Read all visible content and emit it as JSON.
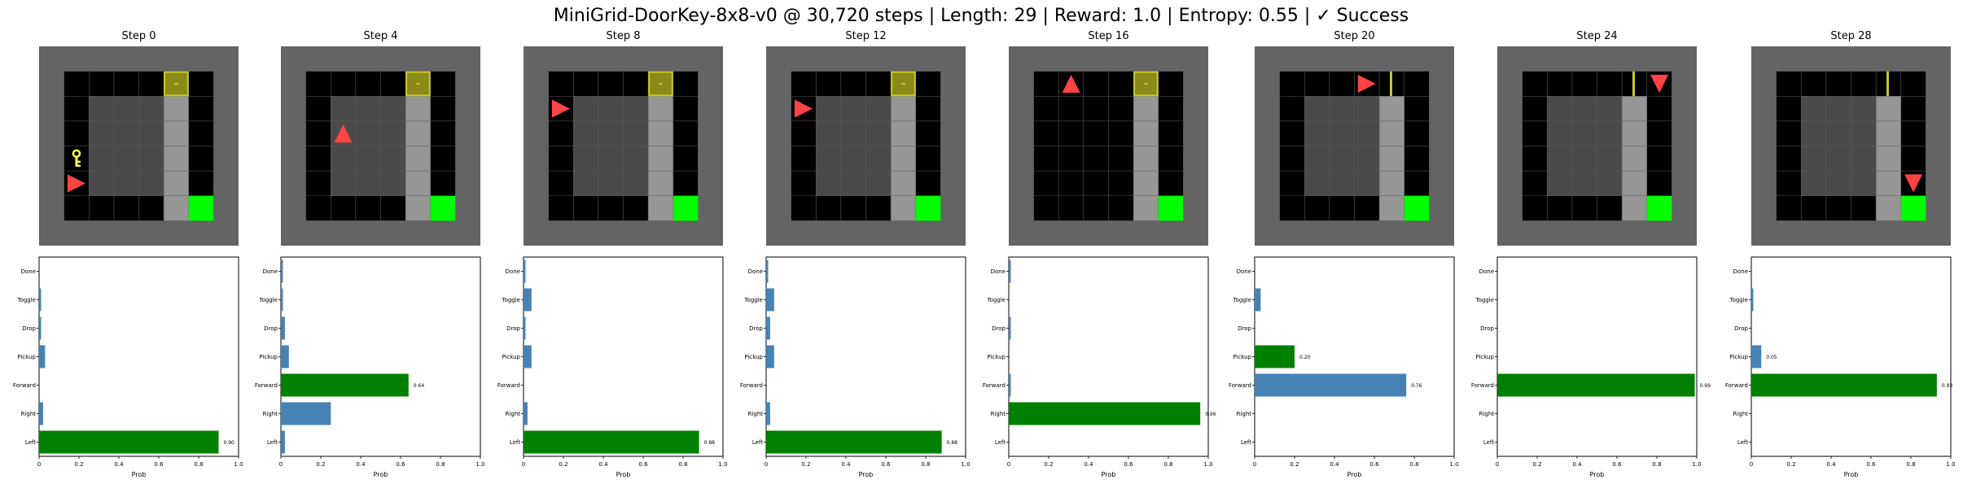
{
  "figure": {
    "title": "MiniGrid-DoorKey-8x8-v0 @ 30,720 steps | Length: 29 | Reward: 1.0 | Entropy: 0.55 | ✓ Success"
  },
  "colors": {
    "outer_wall": "#646464",
    "visible_wall": "#969696",
    "unseen_floor": "#000000",
    "seen_floor": "#4a4a4a",
    "door": "#c8c822",
    "goal": "#00ff00",
    "agent": "#ff4444",
    "key": "#ffff55",
    "bar_default": "#4682b4",
    "bar_selected": "#008000"
  },
  "panels": [
    {
      "label": "Step 0",
      "grid": {
        "agent_cell": [
          1,
          5
        ],
        "agent_dir": "right",
        "key_cell": [
          1,
          4
        ],
        "door_cell": [
          5,
          1
        ],
        "door_state": "closed",
        "goal_cell": [
          6,
          6
        ]
      }
    },
    {
      "label": "Step 4",
      "grid": {
        "agent_cell": [
          2,
          3
        ],
        "agent_dir": "up",
        "key_cell": null,
        "door_cell": [
          5,
          1
        ],
        "door_state": "closed",
        "goal_cell": [
          6,
          6
        ]
      }
    },
    {
      "label": "Step 8",
      "grid": {
        "agent_cell": [
          1,
          2
        ],
        "agent_dir": "right",
        "key_cell": null,
        "door_cell": [
          5,
          1
        ],
        "door_state": "closed",
        "goal_cell": [
          6,
          6
        ]
      }
    },
    {
      "label": "Step 12",
      "grid": {
        "agent_cell": [
          1,
          2
        ],
        "agent_dir": "right",
        "key_cell": null,
        "door_cell": [
          5,
          1
        ],
        "door_state": "closed",
        "goal_cell": [
          6,
          6
        ]
      }
    },
    {
      "label": "Step 16",
      "grid": {
        "agent_cell": [
          2,
          1
        ],
        "agent_dir": "up",
        "key_cell": null,
        "door_cell": [
          5,
          1
        ],
        "door_state": "closed",
        "goal_cell": [
          6,
          6
        ]
      }
    },
    {
      "label": "Step 20",
      "grid": {
        "agent_cell": [
          4,
          1
        ],
        "agent_dir": "right",
        "key_cell": null,
        "door_cell": [
          5,
          1
        ],
        "door_state": "open",
        "goal_cell": [
          6,
          6
        ]
      }
    },
    {
      "label": "Step 24",
      "grid": {
        "agent_cell": [
          6,
          1
        ],
        "agent_dir": "down",
        "key_cell": null,
        "door_cell": [
          5,
          1
        ],
        "door_state": "open",
        "goal_cell": [
          6,
          6
        ]
      }
    },
    {
      "label": "Step 28",
      "grid": {
        "agent_cell": [
          6,
          5
        ],
        "agent_dir": "down",
        "key_cell": null,
        "door_cell": [
          5,
          1
        ],
        "door_state": "open",
        "goal_cell": [
          6,
          6
        ]
      }
    }
  ],
  "chart_data": {
    "type": "bar",
    "orientation": "horizontal",
    "categories": [
      "Left",
      "Right",
      "Forward",
      "Pickup",
      "Drop",
      "Toggle",
      "Done"
    ],
    "xlabel": "Prob",
    "xlim": [
      0,
      1
    ],
    "xticks": [
      "0",
      "0.2",
      "0.4",
      "0.6",
      "0.8",
      "1.0"
    ],
    "series": [
      {
        "values": [
          0.9,
          0.02,
          0.0,
          0.03,
          0.01,
          0.01,
          0.0
        ],
        "selected": 0,
        "label": "0.90"
      },
      {
        "values": [
          0.02,
          0.25,
          0.64,
          0.04,
          0.02,
          0.01,
          0.01
        ],
        "selected": 2,
        "label": "0.64"
      },
      {
        "values": [
          0.88,
          0.02,
          0.0,
          0.04,
          0.01,
          0.04,
          0.01
        ],
        "selected": 0,
        "label": "0.88"
      },
      {
        "values": [
          0.88,
          0.02,
          0.0,
          0.04,
          0.02,
          0.04,
          0.01
        ],
        "selected": 0,
        "label": "0.88"
      },
      {
        "values": [
          0.0,
          0.96,
          0.01,
          0.0,
          0.01,
          0.0,
          0.01
        ],
        "selected": 1,
        "label": "0.96"
      },
      {
        "values": [
          0.0,
          0.0,
          0.76,
          0.2,
          0.0,
          0.03,
          0.0
        ],
        "selected": 3,
        "label": "0.20",
        "extra_labels": [
          {
            "index": 2,
            "text": "0.76"
          }
        ]
      },
      {
        "values": [
          0.0,
          0.0,
          0.99,
          0.0,
          0.0,
          0.0,
          0.0
        ],
        "selected": 2,
        "label": "0.99"
      },
      {
        "values": [
          0.0,
          0.0,
          0.93,
          0.05,
          0.0,
          0.01,
          0.0
        ],
        "selected": 2,
        "label": "0.93",
        "extra_labels": [
          {
            "index": 3,
            "text": "0.05"
          }
        ]
      }
    ]
  }
}
